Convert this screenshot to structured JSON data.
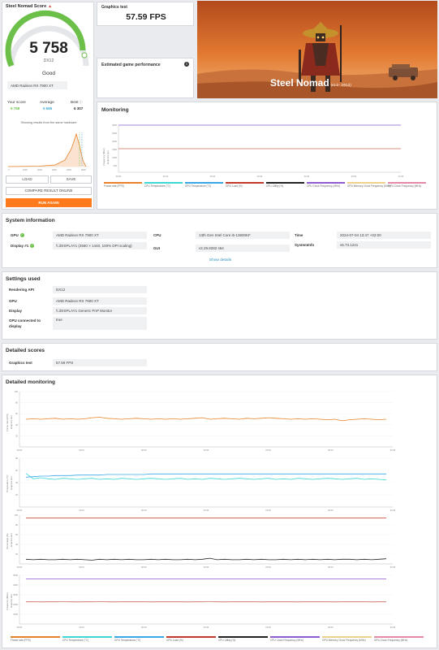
{
  "score": {
    "title": "Steel Nomad Score",
    "value": "5 758",
    "api": "DX12",
    "rating": "Good",
    "gpu": "AMD Radeon RX 7900 XT",
    "your_score_label": "Your score",
    "your_score": "5 758",
    "average_label": "Average",
    "average": "5 585",
    "best_label": "Best",
    "best": "6 307",
    "showing_text": "Showing results from the same hardware",
    "load": "LOAD",
    "save": "SAVE",
    "compare": "COMPARE RESULT ONLINE",
    "run_again": "RUN AGAIN",
    "colors": {
      "gauge": "#6cc04a",
      "accent": "#ff7a1a"
    }
  },
  "graphics_test": {
    "label": "Graphics test",
    "value": "57.59 FPS"
  },
  "estimated": {
    "label": "Estimated game performance",
    "info_icon": "info-icon"
  },
  "hero": {
    "title": "Steel Nomad",
    "version": "(v1.0 - DX12)"
  },
  "monitoring": {
    "title": "Monitoring",
    "y_label": "Frequency (MHz)",
    "y_sub": "Graphics test",
    "yticks": [
      "3000",
      "2500",
      "2000",
      "1500",
      "1000",
      "500"
    ],
    "xticks": [
      "00:00",
      "00:10",
      "00:20",
      "00:30",
      "00:40",
      "00:50",
      "01:00"
    ]
  },
  "legend": [
    {
      "label": "Frame rate (FPS)",
      "color": "#e8822a"
    },
    {
      "label": "CPU Temperature (°C)",
      "color": "#3fd6d6"
    },
    {
      "label": "GPU Temperature (°C)",
      "color": "#39a7e6"
    },
    {
      "label": "GPU Load (%)",
      "color": "#c0392b"
    },
    {
      "label": "CPU Utility (%)",
      "color": "#222222"
    },
    {
      "label": "CPU Clock Frequency (MHz)",
      "color": "#8e5bd0"
    },
    {
      "label": "GPU Memory Clock Frequency (MHz)",
      "color": "#f1d08a"
    },
    {
      "label": "GPU Clock Frequency (MHz)",
      "color": "#e48aa8"
    }
  ],
  "system": {
    "title": "System information",
    "gpu_label": "GPU",
    "gpu": "AMD Radeon RX 7900 XT",
    "display_label": "Display #1",
    "display": "\\\\.\\DISPLAY1 (2560 × 1440, 100% DPI scaling)",
    "cpu_label": "CPU",
    "cpu": "13th Gen Intel Core i5-13600KF",
    "gui_label": "GUI",
    "gui": "v2.29.8282 s64",
    "time_label": "Time",
    "time": "2024-07-04 13:47 +02:00",
    "sysinfo_label": "SystemInfo",
    "sysinfo": "v5.73.1241",
    "show_details": "Show details"
  },
  "settings": {
    "title": "Settings used",
    "rows": [
      {
        "label": "Rendering API",
        "value": "DX12"
      },
      {
        "label": "GPU",
        "value": "AMD Radeon RX 7900 XT"
      },
      {
        "label": "Display",
        "value": "\\\\.\\DISPLAY1 Generic PnP Monitor"
      },
      {
        "label": "GPU connected to display",
        "value": "true"
      }
    ]
  },
  "detailed_scores": {
    "title": "Detailed scores",
    "rows": [
      {
        "label": "Graphics test",
        "value": "57.59 FPS"
      }
    ]
  },
  "detailed_monitoring": {
    "title": "Detailed monitoring",
    "chart1": {
      "y_label": "Frame rate (FPS)",
      "y_sub": "Graphics test",
      "yticks": [
        "100",
        "80",
        "60",
        "40",
        "20"
      ]
    },
    "chart2": {
      "y_label": "Temperature (°C)",
      "y_sub": "Graphics test",
      "yticks": [
        "80",
        "60",
        "40",
        "20"
      ]
    },
    "chart3": {
      "y_label": "Percentage (%)",
      "y_sub": "Graphics test",
      "yticks": [
        "100",
        "80",
        "60",
        "40",
        "20"
      ]
    },
    "chart4": {
      "y_label": "Frequency (MHz)",
      "y_sub": "Graphics test",
      "yticks": [
        "5000",
        "4000",
        "3000",
        "2000",
        "1000"
      ]
    },
    "xticks": [
      "00:00",
      "00:10",
      "00:20",
      "00:30",
      "00:40",
      "00:50",
      "01:00"
    ]
  },
  "chart_data": [
    {
      "type": "line",
      "title": "Frame rate",
      "ylabel": "Frame rate (FPS)",
      "ylim": [
        0,
        110
      ],
      "series": [
        {
          "name": "Frame rate (FPS)",
          "values": [
            55,
            56,
            55,
            56,
            57,
            55,
            56,
            55,
            56,
            58,
            59,
            57,
            56,
            55,
            56,
            57,
            56,
            55,
            56,
            55,
            56,
            55,
            56,
            57,
            58,
            55,
            56,
            57,
            56,
            55,
            57,
            56,
            57,
            58,
            57,
            56,
            55,
            56,
            55,
            56,
            55,
            54,
            55,
            52,
            54,
            55,
            56,
            55,
            54,
            55
          ]
        }
      ]
    },
    {
      "type": "line",
      "title": "Temperature",
      "ylabel": "Temperature (°C)",
      "ylim": [
        0,
        90
      ],
      "series": [
        {
          "name": "CPU Temperature (°C)",
          "values": [
            62,
            52,
            54,
            52,
            51,
            53,
            52,
            51,
            52,
            53,
            51,
            52,
            51,
            53,
            52,
            51,
            52,
            53,
            52,
            51,
            52,
            53,
            51,
            52,
            51,
            53,
            52,
            51,
            52,
            53,
            52,
            51,
            52,
            53,
            51,
            52,
            51,
            53,
            52,
            51,
            52,
            53,
            52,
            51,
            52,
            53,
            51,
            52,
            51,
            50
          ]
        },
        {
          "name": "GPU Temperature (°C)",
          "values": [
            55,
            56,
            57,
            57,
            58,
            58,
            58,
            59,
            59,
            59,
            59,
            60,
            60,
            60,
            60,
            60,
            60,
            61,
            61,
            61,
            61,
            61,
            61,
            61,
            61,
            61,
            61,
            61,
            61,
            61,
            61,
            61,
            61,
            61,
            61,
            61,
            61,
            61,
            61,
            61,
            61,
            61,
            61,
            61,
            61,
            61,
            61,
            61,
            61,
            61
          ]
        }
      ]
    },
    {
      "type": "line",
      "title": "Percentage",
      "ylabel": "Percentage (%)",
      "ylim": [
        0,
        105
      ],
      "series": [
        {
          "name": "GPU Load (%)",
          "values": [
            99,
            99,
            99,
            99,
            99,
            99,
            99,
            99,
            99,
            99,
            99,
            99,
            99,
            99,
            99,
            99,
            99,
            99,
            99,
            99,
            99,
            99,
            99,
            99,
            99,
            99,
            99,
            99,
            99,
            99,
            99,
            99,
            99,
            99,
            99,
            99,
            99,
            99,
            99,
            99,
            99,
            99,
            99,
            99,
            99,
            99,
            99,
            99,
            99,
            99
          ]
        },
        {
          "name": "CPU Utility (%)",
          "values": [
            10,
            9,
            10,
            9,
            9,
            10,
            9,
            10,
            9,
            8,
            10,
            9,
            10,
            9,
            10,
            9,
            9,
            10,
            9,
            10,
            9,
            9,
            10,
            9,
            10,
            12,
            9,
            10,
            9,
            9,
            10,
            9,
            10,
            9,
            9,
            10,
            9,
            10,
            9,
            10,
            9,
            10,
            9,
            10,
            10,
            9,
            10,
            9,
            10,
            11
          ]
        }
      ]
    },
    {
      "type": "line",
      "title": "Frequency",
      "ylabel": "Frequency (MHz)",
      "ylim": [
        0,
        5500
      ],
      "series": [
        {
          "name": "CPU Clock Frequency (MHz)",
          "values": [
            5100,
            5100,
            5100,
            5100,
            5100,
            5100,
            5100,
            5100,
            5100,
            5100,
            5100,
            5100,
            5100,
            5100,
            5100,
            5100,
            5100,
            5100,
            5100,
            5100,
            5100,
            5100,
            5100,
            5100,
            5100,
            5100,
            5100,
            5100,
            5100,
            5100,
            5100,
            5100,
            5100,
            5100,
            5100,
            5100,
            5100,
            5100,
            5100,
            5100,
            5100,
            5100,
            5100,
            5100,
            5100,
            5100,
            5100,
            5100,
            5100,
            5100
          ]
        },
        {
          "name": "GPU Clock Frequency (MHz)",
          "values": [
            2500,
            2510,
            2495,
            2505,
            2500,
            2510,
            2500,
            2495,
            2505,
            2500,
            2510,
            2500,
            2495,
            2505,
            2500,
            2510,
            2500,
            2495,
            2505,
            2500,
            2510,
            2500,
            2495,
            2505,
            2500,
            2510,
            2500,
            2495,
            2505,
            2500,
            2510,
            2500,
            2495,
            2505,
            2500,
            2510,
            2500,
            2495,
            2505,
            2500,
            2510,
            2500,
            2495,
            2505,
            2500,
            2510,
            2500,
            2495,
            2505,
            2500
          ]
        }
      ]
    }
  ]
}
